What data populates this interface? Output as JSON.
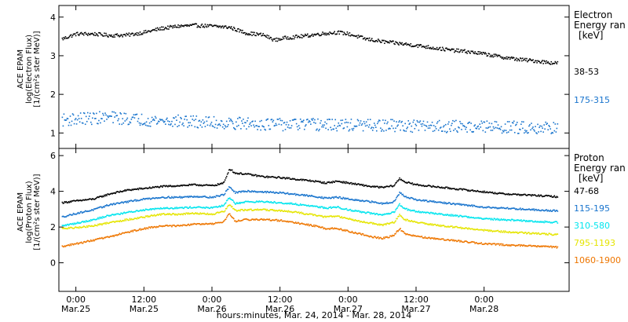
{
  "chart_data": [
    {
      "type": "scatter",
      "panel": "electron",
      "ylabel_lines": [
        "ACE EPAM",
        "log(Electron Flux)",
        "[1/(cm²s ster MeV)]"
      ],
      "ylim": [
        0.6,
        4.3
      ],
      "yticks": [
        1,
        2,
        3,
        4
      ],
      "xlim": [
        -3,
        87
      ],
      "legend_heading_lines": [
        "Electron",
        "Energy ran",
        "[keV]"
      ],
      "series": [
        {
          "name": "38-53",
          "color": "#000000",
          "points": [
            [
              -2.5,
              3.45
            ],
            [
              0,
              3.58
            ],
            [
              3,
              3.58
            ],
            [
              6,
              3.54
            ],
            [
              9,
              3.55
            ],
            [
              12,
              3.62
            ],
            [
              15,
              3.72
            ],
            [
              18,
              3.78
            ],
            [
              21,
              3.8
            ],
            [
              24,
              3.78
            ],
            [
              27,
              3.75
            ],
            [
              30,
              3.6
            ],
            [
              33,
              3.55
            ],
            [
              35,
              3.42
            ],
            [
              37,
              3.48
            ],
            [
              40,
              3.52
            ],
            [
              43,
              3.58
            ],
            [
              46,
              3.62
            ],
            [
              48,
              3.58
            ],
            [
              51,
              3.45
            ],
            [
              54,
              3.38
            ],
            [
              57,
              3.33
            ],
            [
              60,
              3.28
            ],
            [
              63,
              3.22
            ],
            [
              66,
              3.16
            ],
            [
              69,
              3.12
            ],
            [
              72,
              3.06
            ],
            [
              75,
              2.98
            ],
            [
              78,
              2.92
            ],
            [
              81,
              2.88
            ],
            [
              84,
              2.83
            ],
            [
              85,
              2.82
            ]
          ]
        },
        {
          "name": "175-315",
          "color": "#1874cd",
          "points": [
            [
              -2.5,
              1.35
            ],
            [
              0,
              1.38
            ],
            [
              3,
              1.4
            ],
            [
              6,
              1.42
            ],
            [
              9,
              1.38
            ],
            [
              12,
              1.36
            ],
            [
              15,
              1.33
            ],
            [
              18,
              1.32
            ],
            [
              21,
              1.3
            ],
            [
              24,
              1.28
            ],
            [
              27,
              1.27
            ],
            [
              30,
              1.26
            ],
            [
              33,
              1.25
            ],
            [
              36,
              1.23
            ],
            [
              39,
              1.24
            ],
            [
              42,
              1.23
            ],
            [
              45,
              1.22
            ],
            [
              48,
              1.22
            ],
            [
              51,
              1.21
            ],
            [
              54,
              1.2
            ],
            [
              57,
              1.21
            ],
            [
              60,
              1.19
            ],
            [
              63,
              1.2
            ],
            [
              66,
              1.18
            ],
            [
              69,
              1.19
            ],
            [
              72,
              1.17
            ],
            [
              75,
              1.17
            ],
            [
              78,
              1.16
            ],
            [
              81,
              1.16
            ],
            [
              84,
              1.15
            ],
            [
              85,
              1.16
            ]
          ]
        }
      ]
    },
    {
      "type": "scatter",
      "panel": "proton",
      "ylabel_lines": [
        "ACE EPAM",
        "log(Proton Flux)",
        "[1/(cm²s ster MeV)]"
      ],
      "ylim": [
        -1.6,
        6.4
      ],
      "yticks": [
        0,
        2,
        4,
        6
      ],
      "xlim": [
        -3,
        87
      ],
      "legend_heading_lines": [
        "Proton",
        "Energy ran",
        "[keV]"
      ],
      "series": [
        {
          "name": "47-68",
          "color": "#000000",
          "points": [
            [
              -2.5,
              3.4
            ],
            [
              0,
              3.5
            ],
            [
              3,
              3.6
            ],
            [
              6,
              3.9
            ],
            [
              9,
              4.1
            ],
            [
              12,
              4.2
            ],
            [
              15,
              4.3
            ],
            [
              18,
              4.35
            ],
            [
              21,
              4.4
            ],
            [
              24,
              4.35
            ],
            [
              26,
              4.5
            ],
            [
              27,
              5.3
            ],
            [
              28,
              5.05
            ],
            [
              30,
              5.0
            ],
            [
              33,
              4.85
            ],
            [
              36,
              4.8
            ],
            [
              39,
              4.7
            ],
            [
              42,
              4.6
            ],
            [
              44,
              4.5
            ],
            [
              46,
              4.6
            ],
            [
              48,
              4.5
            ],
            [
              50,
              4.4
            ],
            [
              52,
              4.3
            ],
            [
              54,
              4.25
            ],
            [
              56,
              4.35
            ],
            [
              57,
              4.75
            ],
            [
              58,
              4.55
            ],
            [
              60,
              4.4
            ],
            [
              63,
              4.3
            ],
            [
              66,
              4.2
            ],
            [
              69,
              4.1
            ],
            [
              72,
              4.0
            ],
            [
              75,
              3.9
            ],
            [
              78,
              3.85
            ],
            [
              81,
              3.8
            ],
            [
              84,
              3.75
            ],
            [
              85,
              3.72
            ]
          ]
        },
        {
          "name": "115-195",
          "color": "#1874cd",
          "points": [
            [
              -2.5,
              2.6
            ],
            [
              0,
              2.8
            ],
            [
              3,
              3.0
            ],
            [
              6,
              3.3
            ],
            [
              9,
              3.45
            ],
            [
              12,
              3.6
            ],
            [
              15,
              3.7
            ],
            [
              18,
              3.7
            ],
            [
              21,
              3.75
            ],
            [
              24,
              3.7
            ],
            [
              26,
              3.85
            ],
            [
              27,
              4.3
            ],
            [
              28,
              3.95
            ],
            [
              30,
              4.05
            ],
            [
              33,
              4.0
            ],
            [
              36,
              3.95
            ],
            [
              39,
              3.85
            ],
            [
              42,
              3.75
            ],
            [
              44,
              3.65
            ],
            [
              46,
              3.7
            ],
            [
              48,
              3.6
            ],
            [
              50,
              3.5
            ],
            [
              52,
              3.45
            ],
            [
              54,
              3.35
            ],
            [
              56,
              3.45
            ],
            [
              57,
              3.95
            ],
            [
              58,
              3.75
            ],
            [
              60,
              3.55
            ],
            [
              63,
              3.45
            ],
            [
              66,
              3.35
            ],
            [
              69,
              3.25
            ],
            [
              72,
              3.15
            ],
            [
              75,
              3.1
            ],
            [
              78,
              3.05
            ],
            [
              81,
              3.0
            ],
            [
              84,
              2.95
            ],
            [
              85,
              2.95
            ]
          ]
        },
        {
          "name": "310-580",
          "color": "#00e5ee",
          "points": [
            [
              -2.5,
              2.1
            ],
            [
              0,
              2.25
            ],
            [
              3,
              2.45
            ],
            [
              6,
              2.7
            ],
            [
              9,
              2.85
            ],
            [
              12,
              3.0
            ],
            [
              15,
              3.1
            ],
            [
              18,
              3.1
            ],
            [
              21,
              3.15
            ],
            [
              24,
              3.1
            ],
            [
              26,
              3.25
            ],
            [
              27,
              3.7
            ],
            [
              28,
              3.35
            ],
            [
              30,
              3.45
            ],
            [
              33,
              3.45
            ],
            [
              36,
              3.4
            ],
            [
              39,
              3.3
            ],
            [
              42,
              3.2
            ],
            [
              44,
              3.1
            ],
            [
              46,
              3.15
            ],
            [
              48,
              3.0
            ],
            [
              50,
              2.9
            ],
            [
              52,
              2.8
            ],
            [
              54,
              2.7
            ],
            [
              56,
              2.85
            ],
            [
              57,
              3.3
            ],
            [
              58,
              3.05
            ],
            [
              60,
              2.9
            ],
            [
              63,
              2.8
            ],
            [
              66,
              2.7
            ],
            [
              69,
              2.6
            ],
            [
              72,
              2.5
            ],
            [
              75,
              2.45
            ],
            [
              78,
              2.4
            ],
            [
              81,
              2.35
            ],
            [
              84,
              2.3
            ],
            [
              85,
              2.3
            ]
          ]
        },
        {
          "name": "795-1193",
          "color": "#e5e500",
          "points": [
            [
              -2.5,
              1.95
            ],
            [
              0,
              2.0
            ],
            [
              3,
              2.1
            ],
            [
              6,
              2.3
            ],
            [
              9,
              2.45
            ],
            [
              12,
              2.6
            ],
            [
              15,
              2.75
            ],
            [
              18,
              2.75
            ],
            [
              21,
              2.8
            ],
            [
              24,
              2.75
            ],
            [
              26,
              2.9
            ],
            [
              27,
              3.3
            ],
            [
              28,
              2.95
            ],
            [
              30,
              3.0
            ],
            [
              33,
              3.0
            ],
            [
              36,
              2.95
            ],
            [
              39,
              2.85
            ],
            [
              42,
              2.7
            ],
            [
              44,
              2.6
            ],
            [
              46,
              2.65
            ],
            [
              48,
              2.5
            ],
            [
              50,
              2.35
            ],
            [
              52,
              2.25
            ],
            [
              54,
              2.15
            ],
            [
              56,
              2.3
            ],
            [
              57,
              2.7
            ],
            [
              58,
              2.45
            ],
            [
              60,
              2.3
            ],
            [
              63,
              2.15
            ],
            [
              66,
              2.05
            ],
            [
              69,
              1.95
            ],
            [
              72,
              1.85
            ],
            [
              75,
              1.78
            ],
            [
              78,
              1.72
            ],
            [
              81,
              1.68
            ],
            [
              84,
              1.62
            ],
            [
              85,
              1.6
            ]
          ]
        },
        {
          "name": "1060-1900",
          "color": "#ee7600",
          "points": [
            [
              -2.5,
              0.95
            ],
            [
              0,
              1.1
            ],
            [
              3,
              1.3
            ],
            [
              6,
              1.5
            ],
            [
              9,
              1.75
            ],
            [
              12,
              1.95
            ],
            [
              15,
              2.1
            ],
            [
              18,
              2.1
            ],
            [
              21,
              2.2
            ],
            [
              24,
              2.2
            ],
            [
              26,
              2.35
            ],
            [
              27,
              2.8
            ],
            [
              28,
              2.35
            ],
            [
              30,
              2.45
            ],
            [
              33,
              2.45
            ],
            [
              36,
              2.4
            ],
            [
              39,
              2.25
            ],
            [
              42,
              2.1
            ],
            [
              44,
              1.95
            ],
            [
              46,
              1.95
            ],
            [
              48,
              1.8
            ],
            [
              50,
              1.65
            ],
            [
              52,
              1.5
            ],
            [
              54,
              1.4
            ],
            [
              56,
              1.55
            ],
            [
              57,
              1.95
            ],
            [
              58,
              1.65
            ],
            [
              60,
              1.5
            ],
            [
              63,
              1.4
            ],
            [
              66,
              1.3
            ],
            [
              69,
              1.2
            ],
            [
              72,
              1.1
            ],
            [
              75,
              1.05
            ],
            [
              78,
              1.0
            ],
            [
              81,
              0.97
            ],
            [
              84,
              0.92
            ],
            [
              85,
              0.9
            ]
          ]
        }
      ]
    }
  ],
  "x_axis": {
    "ticks": [
      {
        "x": 0,
        "time": "0:00",
        "date": "Mar.25"
      },
      {
        "x": 12,
        "time": "12:00",
        "date": "Mar.25"
      },
      {
        "x": 24,
        "time": "0:00",
        "date": "Mar.26"
      },
      {
        "x": 36,
        "time": "12:00",
        "date": "Mar.26"
      },
      {
        "x": 48,
        "time": "0:00",
        "date": "Mar.27"
      },
      {
        "x": 60,
        "time": "12:00",
        "date": "Mar.27"
      },
      {
        "x": 72,
        "time": "0:00",
        "date": "Mar.28"
      }
    ],
    "label": "hours:minutes, Mar. 24, 2014 - Mar. 28, 2014"
  }
}
